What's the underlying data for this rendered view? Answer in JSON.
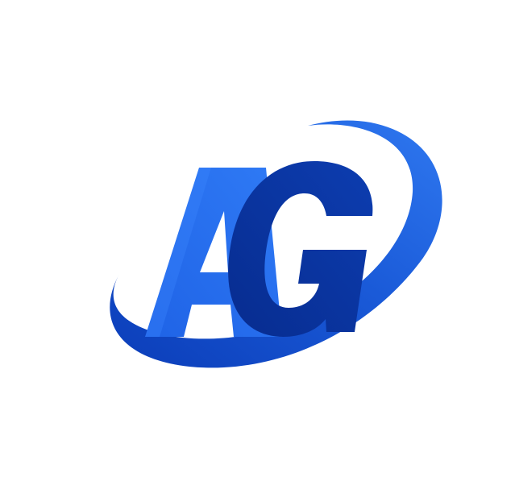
{
  "logo": {
    "lettering": "AG",
    "colors": {
      "background": "#ffffff",
      "letter_a": "#1f63e6",
      "letter_a_shade": "#2f7af5",
      "letter_g": "#072c8f",
      "letter_g_shade": "#0d3db0",
      "swoosh_dark": "#0b3db8",
      "swoosh_light": "#2f78f0"
    }
  }
}
